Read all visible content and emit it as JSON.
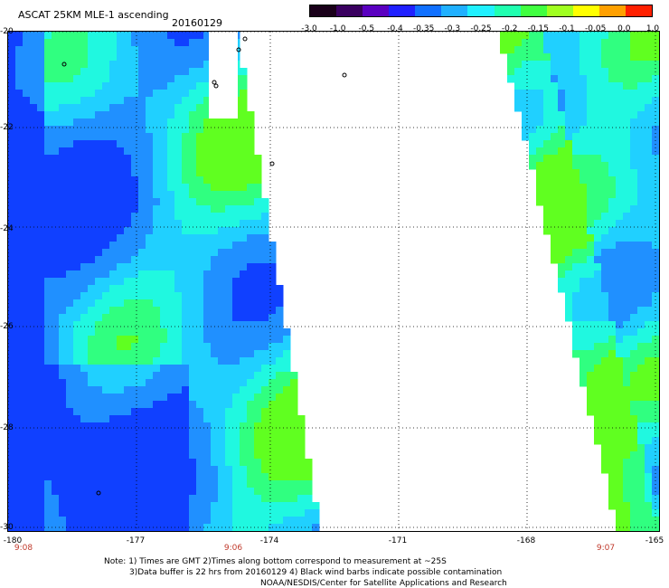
{
  "title": "ASCAT 25KM MLE-1 ascending",
  "date": "20160129",
  "colorbar": {
    "labels": [
      "-3.0",
      "-1.0",
      "-0.5",
      "-0.4",
      "-0.35",
      "-0.3",
      "-0.25",
      "-0.2",
      "-0.15",
      "-0.1",
      "-0.05",
      "0.0",
      "1.0"
    ],
    "colors": [
      "#1a001a",
      "#3a0060",
      "#5a00c0",
      "#2020ff",
      "#1070ff",
      "#20b0ff",
      "#20f0ff",
      "#20ffb0",
      "#40ff40",
      "#a0ff20",
      "#ffff00",
      "#ffa000",
      "#ff2000"
    ]
  },
  "axes": {
    "lat_labels": [
      "-20",
      "-22",
      "-24",
      "-26",
      "-28",
      "-30"
    ],
    "lon_labels": [
      "-180",
      "-177",
      "-174",
      "-171",
      "-168",
      "-165"
    ]
  },
  "times": [
    "9:08",
    "9:06",
    "9:07"
  ],
  "notes": {
    "line1": "Note: 1) Times are GMT 2)Times along bottom correspond to measurement at ~25S",
    "line2": "3)Data buffer is 22 hrs from 20160129 4) Black wind barbs indicate possible contamination",
    "line3": "NOAA/NESDIS/Center for Satellite Applications and Research"
  }
}
